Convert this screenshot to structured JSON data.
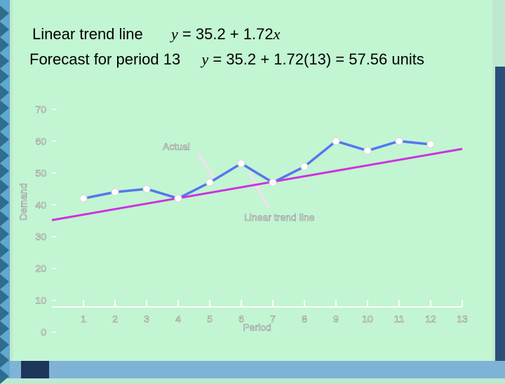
{
  "header": {
    "line1_label": "Linear trend line",
    "line1_eq_y": "y",
    "line1_eq_mid": " = 35.2 + 1.72",
    "line1_eq_x": "x",
    "line2_label": "Forecast for period 13",
    "line2_eq_y": "y",
    "line2_eq_rest": " = 35.2 + 1.72(13)  = 57.56 units"
  },
  "colors": {
    "background": "#c2f5d2",
    "actual_line": "#5577ee",
    "trend_line": "#cc33dd",
    "point": "#ffffff",
    "accent_strip": "#5fa8cf"
  },
  "chart_data": {
    "type": "line",
    "xlabel": "Period",
    "ylabel": "Demand",
    "x_ticks": [
      1,
      2,
      3,
      4,
      5,
      6,
      7,
      8,
      9,
      10,
      11,
      12,
      13
    ],
    "y_ticks": [
      0,
      10,
      20,
      30,
      40,
      50,
      60,
      70
    ],
    "xlim": [
      0,
      13
    ],
    "ylim": [
      0,
      70
    ],
    "grid": false,
    "series": [
      {
        "name": "Actual",
        "x": [
          1,
          2,
          3,
          4,
          5,
          6,
          7,
          8,
          9,
          10,
          11,
          12
        ],
        "values": [
          42,
          44,
          45,
          42,
          47,
          53,
          47,
          52,
          60,
          57,
          60,
          59
        ]
      },
      {
        "name": "Linear trend line",
        "x": [
          0,
          13
        ],
        "values": [
          35.2,
          57.56
        ]
      }
    ],
    "annotations": [
      "Actual",
      "Linear trend line"
    ]
  }
}
